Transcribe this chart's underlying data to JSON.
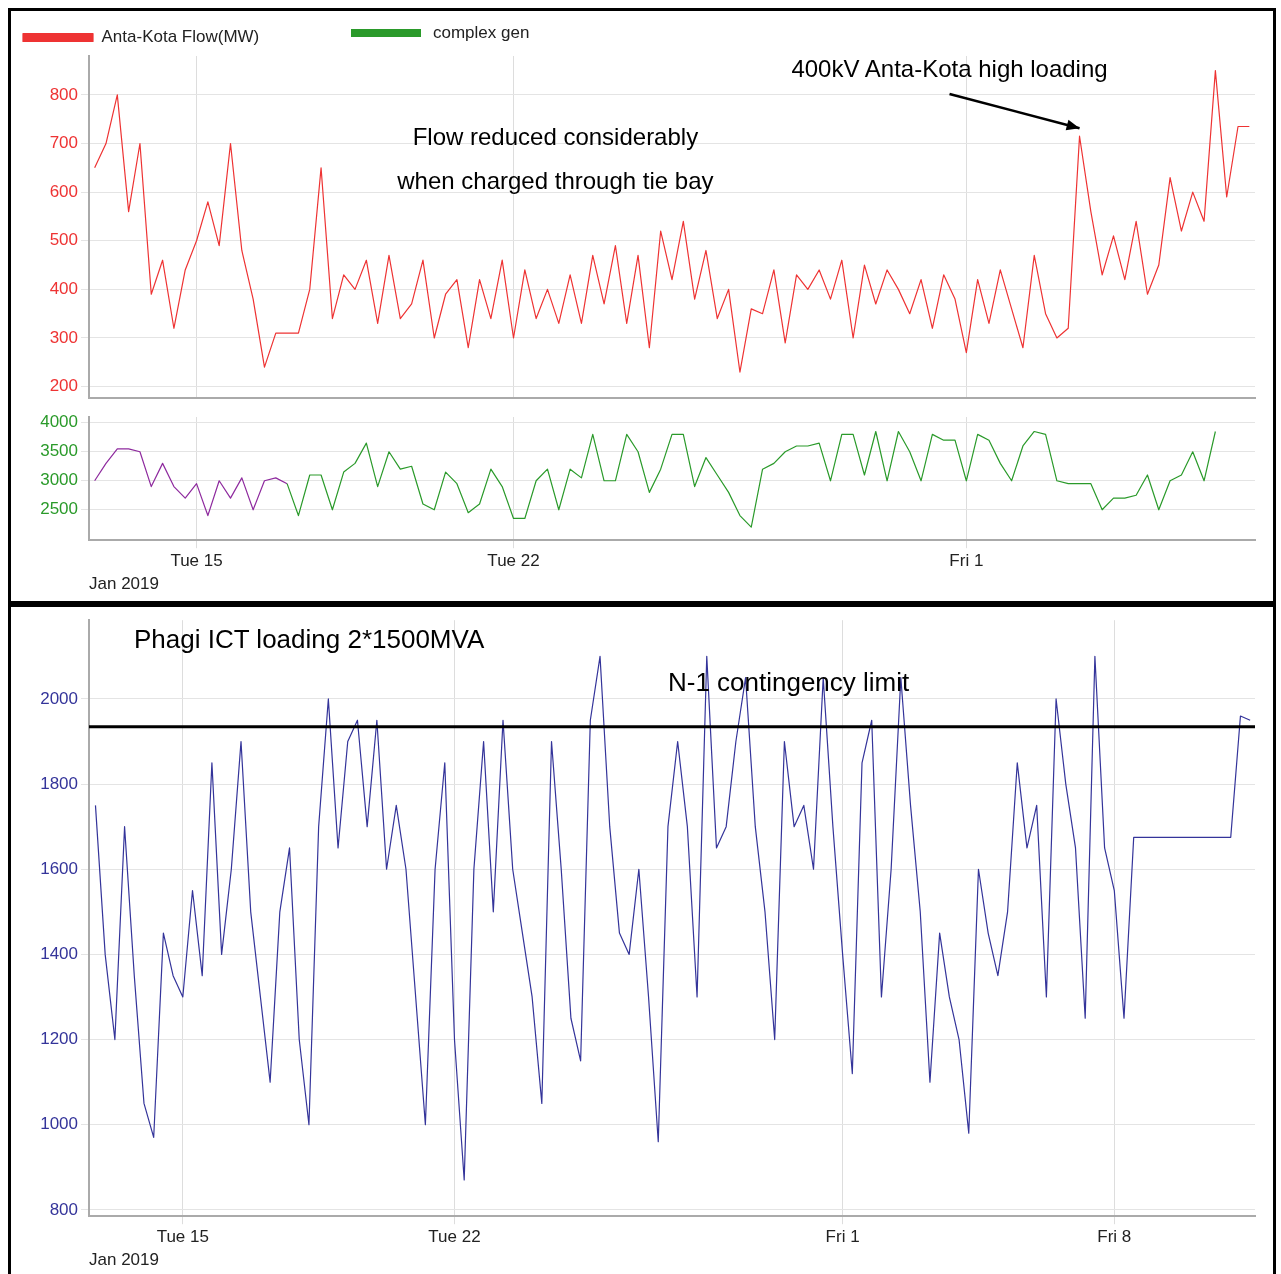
{
  "chart_data": [
    {
      "type": "line",
      "legend": "top left",
      "grid": true,
      "marker": "none",
      "line_style": "solid",
      "tick_labels": "y",
      "annotations": [
        "Flow reduced considerably when charged through tie bay",
        {
          "text": "400kV Anta-Kota high loading",
          "x": "2019-02-03T12:00",
          "y": 715
        }
      ],
      "xlim": [
        "2019-01-12T15:00",
        "2019-02-07T09:00"
      ],
      "xticks": [
        {
          "value": "2019-01-15",
          "label": null
        },
        {
          "value": "2019-01-22",
          "label": null
        },
        {
          "value": "2019-02-01",
          "label": null
        }
      ],
      "ylim": [
        177,
        880
      ],
      "yticks": [
        200,
        300,
        400,
        500,
        600,
        700,
        800
      ],
      "x": [
        "2019-01-12T18:00",
        "2019-01-13T00:00",
        "2019-01-13T06:00",
        "2019-01-13T12:00",
        "2019-01-13T18:00",
        "2019-01-14T00:00",
        "2019-01-14T06:00",
        "2019-01-14T12:00",
        "2019-01-14T18:00",
        "2019-01-15T00:00",
        "2019-01-15T06:00",
        "2019-01-15T12:00",
        "2019-01-15T18:00",
        "2019-01-16T00:00",
        "2019-01-16T06:00",
        "2019-01-16T12:00",
        "2019-01-16T18:00",
        "2019-01-17T00:00",
        "2019-01-17T06:00",
        "2019-01-17T12:00",
        "2019-01-17T18:00",
        "2019-01-18T00:00",
        "2019-01-18T06:00",
        "2019-01-18T12:00",
        "2019-01-18T18:00",
        "2019-01-19T00:00",
        "2019-01-19T06:00",
        "2019-01-19T12:00",
        "2019-01-19T18:00",
        "2019-01-20T00:00",
        "2019-01-20T06:00",
        "2019-01-20T12:00",
        "2019-01-20T18:00",
        "2019-01-21T00:00",
        "2019-01-21T06:00",
        "2019-01-21T12:00",
        "2019-01-21T18:00",
        "2019-01-22T00:00",
        "2019-01-22T06:00",
        "2019-01-22T12:00",
        "2019-01-22T18:00",
        "2019-01-23T00:00",
        "2019-01-23T06:00",
        "2019-01-23T12:00",
        "2019-01-23T18:00",
        "2019-01-24T00:00",
        "2019-01-24T06:00",
        "2019-01-24T12:00",
        "2019-01-24T18:00",
        "2019-01-25T00:00",
        "2019-01-25T06:00",
        "2019-01-25T12:00",
        "2019-01-25T18:00",
        "2019-01-26T00:00",
        "2019-01-26T06:00",
        "2019-01-26T12:00",
        "2019-01-26T18:00",
        "2019-01-27T00:00",
        "2019-01-27T06:00",
        "2019-01-27T12:00",
        "2019-01-27T18:00",
        "2019-01-28T00:00",
        "2019-01-28T06:00",
        "2019-01-28T12:00",
        "2019-01-28T18:00",
        "2019-01-29T00:00",
        "2019-01-29T06:00",
        "2019-01-29T12:00",
        "2019-01-29T18:00",
        "2019-01-30T00:00",
        "2019-01-30T06:00",
        "2019-01-30T12:00",
        "2019-01-30T18:00",
        "2019-01-31T00:00",
        "2019-01-31T06:00",
        "2019-01-31T12:00",
        "2019-01-31T18:00",
        "2019-02-01T00:00",
        "2019-02-01T06:00",
        "2019-02-01T12:00",
        "2019-02-01T18:00",
        "2019-02-02T00:00",
        "2019-02-02T06:00",
        "2019-02-02T12:00",
        "2019-02-02T18:00",
        "2019-02-03T00:00",
        "2019-02-03T06:00",
        "2019-02-03T12:00",
        "2019-02-03T18:00",
        "2019-02-04T00:00",
        "2019-02-04T06:00",
        "2019-02-04T12:00",
        "2019-02-04T18:00",
        "2019-02-05T00:00",
        "2019-02-05T06:00",
        "2019-02-05T12:00",
        "2019-02-05T18:00",
        "2019-02-06T00:00",
        "2019-02-06T06:00",
        "2019-02-06T12:00",
        "2019-02-06T18:00",
        "2019-02-07T00:00",
        "2019-02-07T06:00"
      ],
      "series": [
        {
          "name": "Anta-Kota Flow(MW)",
          "color": "#ee3333",
          "values": [
            650,
            700,
            800,
            560,
            700,
            390,
            460,
            320,
            440,
            500,
            580,
            490,
            700,
            480,
            380,
            240,
            310,
            310,
            310,
            400,
            650,
            340,
            430,
            400,
            460,
            330,
            470,
            340,
            370,
            460,
            300,
            390,
            420,
            280,
            420,
            340,
            460,
            300,
            440,
            340,
            400,
            330,
            430,
            330,
            470,
            370,
            490,
            330,
            470,
            280,
            520,
            420,
            540,
            380,
            480,
            340,
            400,
            230,
            360,
            350,
            440,
            290,
            430,
            400,
            440,
            380,
            460,
            300,
            450,
            370,
            440,
            400,
            350,
            420,
            320,
            430,
            380,
            270,
            420,
            330,
            440,
            360,
            280,
            470,
            350,
            300,
            320,
            715,
            560,
            430,
            510,
            420,
            540,
            390,
            450,
            630,
            520,
            600,
            540,
            850,
            590,
            735,
            735
          ]
        }
      ]
    },
    {
      "type": "line",
      "xlabel": "Jan 2019",
      "legend": "top left",
      "grid": true,
      "marker": "none",
      "line_style": "solid",
      "xlim": [
        "2019-01-12T15:00",
        "2019-02-07T09:00"
      ],
      "xticks": [
        {
          "value": "2019-01-15",
          "label": "Tue 15"
        },
        {
          "value": "2019-01-22",
          "label": "Tue 22"
        },
        {
          "value": "2019-02-01",
          "label": "Fri 1"
        }
      ],
      "ylim": [
        1975,
        4100
      ],
      "yticks": [
        2500,
        3000,
        3500,
        4000
      ],
      "x": [
        "2019-01-17T00:00",
        "2019-01-17T06:00",
        "2019-01-17T12:00",
        "2019-01-17T18:00",
        "2019-01-18T00:00",
        "2019-01-18T06:00",
        "2019-01-18T12:00",
        "2019-01-18T18:00",
        "2019-01-19T00:00",
        "2019-01-19T06:00",
        "2019-01-19T12:00",
        "2019-01-19T18:00",
        "2019-01-20T00:00",
        "2019-01-20T06:00",
        "2019-01-20T12:00",
        "2019-01-20T18:00",
        "2019-01-21T00:00",
        "2019-01-21T06:00",
        "2019-01-21T12:00",
        "2019-01-21T18:00",
        "2019-01-22T00:00",
        "2019-01-22T06:00",
        "2019-01-22T12:00",
        "2019-01-22T18:00",
        "2019-01-23T00:00",
        "2019-01-23T06:00",
        "2019-01-23T12:00",
        "2019-01-23T18:00",
        "2019-01-24T00:00",
        "2019-01-24T06:00",
        "2019-01-24T12:00",
        "2019-01-24T18:00",
        "2019-01-25T00:00",
        "2019-01-25T06:00",
        "2019-01-25T12:00",
        "2019-01-25T18:00",
        "2019-01-26T00:00",
        "2019-01-26T06:00",
        "2019-01-26T12:00",
        "2019-01-26T18:00",
        "2019-01-27T00:00",
        "2019-01-27T06:00",
        "2019-01-27T12:00",
        "2019-01-27T18:00",
        "2019-01-28T00:00",
        "2019-01-28T06:00",
        "2019-01-28T12:00",
        "2019-01-28T18:00",
        "2019-01-29T00:00",
        "2019-01-29T06:00",
        "2019-01-29T12:00",
        "2019-01-29T18:00",
        "2019-01-30T00:00",
        "2019-01-30T06:00",
        "2019-01-30T12:00",
        "2019-01-30T18:00",
        "2019-01-31T00:00",
        "2019-01-31T06:00",
        "2019-01-31T12:00",
        "2019-01-31T18:00",
        "2019-02-01T00:00",
        "2019-02-01T06:00",
        "2019-02-01T12:00",
        "2019-02-01T18:00",
        "2019-02-02T00:00",
        "2019-02-02T06:00",
        "2019-02-02T12:00",
        "2019-02-02T18:00",
        "2019-02-03T00:00",
        "2019-02-03T06:00",
        "2019-02-03T12:00",
        "2019-02-03T18:00",
        "2019-02-04T00:00",
        "2019-02-04T06:00",
        "2019-02-04T12:00",
        "2019-02-04T18:00",
        "2019-02-05T00:00",
        "2019-02-05T06:00",
        "2019-02-05T12:00",
        "2019-02-05T18:00",
        "2019-02-06T00:00",
        "2019-02-06T06:00",
        "2019-02-06T12:00"
      ],
      "series": [
        {
          "name": "complex gen",
          "color": "#2a9a2a",
          "values": [
            2950,
            2400,
            3100,
            3100,
            2500,
            3150,
            3300,
            3650,
            2900,
            3500,
            3200,
            3250,
            2600,
            2500,
            3150,
            2950,
            2450,
            2600,
            3200,
            2900,
            2350,
            2350,
            3000,
            3200,
            2500,
            3200,
            3050,
            3800,
            3000,
            3000,
            3800,
            3500,
            2800,
            3200,
            3800,
            3800,
            2900,
            3400,
            3100,
            2800,
            2400,
            2200,
            3200,
            3300,
            3500,
            3600,
            3600,
            3650,
            3000,
            3800,
            3800,
            3100,
            3850,
            3000,
            3850,
            3500,
            3000,
            3800,
            3700,
            3700,
            3000,
            3800,
            3700,
            3300,
            3000,
            3600,
            3850,
            3800,
            3000,
            2950,
            2950,
            2950,
            2500,
            2700,
            2700,
            2750,
            3100,
            2500,
            3000,
            3100,
            3500,
            3000,
            3850
          ]
        },
        {
          "color": "#8e2a9e",
          "x": [
            "2019-01-12T18:00",
            "2019-01-13T00:00",
            "2019-01-13T06:00",
            "2019-01-13T12:00",
            "2019-01-13T18:00",
            "2019-01-14T00:00",
            "2019-01-14T06:00",
            "2019-01-14T12:00",
            "2019-01-14T18:00",
            "2019-01-15T00:00",
            "2019-01-15T06:00",
            "2019-01-15T12:00",
            "2019-01-15T18:00",
            "2019-01-16T00:00",
            "2019-01-16T06:00",
            "2019-01-16T12:00",
            "2019-01-16T18:00",
            "2019-01-17T00:00"
          ],
          "values": [
            3000,
            3300,
            3550,
            3550,
            3500,
            2900,
            3300,
            2900,
            2700,
            2950,
            2400,
            3000,
            2700,
            3050,
            2500,
            3000,
            3050,
            2950
          ]
        }
      ]
    },
    {
      "type": "line",
      "title": "Phagi ICT loading 2*1500MVA",
      "xlabel": "Jan 2019",
      "grid": true,
      "marker": "none",
      "line_style": "solid",
      "xlim": [
        "2019-01-12T14:00",
        "2019-02-11T15:00"
      ],
      "xticks": [
        {
          "value": "2019-01-15",
          "label": "Tue 15"
        },
        {
          "value": "2019-01-22",
          "label": "Tue 22"
        },
        {
          "value": "2019-02-01",
          "label": "Fri 1"
        },
        {
          "value": "2019-02-08",
          "label": "Fri 8"
        }
      ],
      "ylim": [
        785,
        2185
      ],
      "yticks": [
        800,
        1000,
        1200,
        1400,
        1600,
        1800,
        2000
      ],
      "ref_lines": [
        {
          "axis": "y",
          "value": 1935,
          "label": "N-1 contingency limit",
          "color": "#000000"
        }
      ],
      "x": [
        "2019-01-12T18:00",
        "2019-01-13T00:00",
        "2019-01-13T06:00",
        "2019-01-13T12:00",
        "2019-01-13T18:00",
        "2019-01-14T00:00",
        "2019-01-14T06:00",
        "2019-01-14T12:00",
        "2019-01-14T18:00",
        "2019-01-15T00:00",
        "2019-01-15T06:00",
        "2019-01-15T12:00",
        "2019-01-15T18:00",
        "2019-01-16T00:00",
        "2019-01-16T06:00",
        "2019-01-16T12:00",
        "2019-01-16T18:00",
        "2019-01-17T00:00",
        "2019-01-17T06:00",
        "2019-01-17T12:00",
        "2019-01-17T18:00",
        "2019-01-18T00:00",
        "2019-01-18T06:00",
        "2019-01-18T12:00",
        "2019-01-18T18:00",
        "2019-01-19T00:00",
        "2019-01-19T06:00",
        "2019-01-19T12:00",
        "2019-01-19T18:00",
        "2019-01-20T00:00",
        "2019-01-20T06:00",
        "2019-01-20T12:00",
        "2019-01-20T18:00",
        "2019-01-21T00:00",
        "2019-01-21T06:00",
        "2019-01-21T12:00",
        "2019-01-21T18:00",
        "2019-01-22T00:00",
        "2019-01-22T06:00",
        "2019-01-22T12:00",
        "2019-01-22T18:00",
        "2019-01-23T00:00",
        "2019-01-23T06:00",
        "2019-01-23T12:00",
        "2019-01-23T18:00",
        "2019-01-24T00:00",
        "2019-01-24T06:00",
        "2019-01-24T12:00",
        "2019-01-24T18:00",
        "2019-01-25T00:00",
        "2019-01-25T06:00",
        "2019-01-25T12:00",
        "2019-01-25T18:00",
        "2019-01-26T00:00",
        "2019-01-26T06:00",
        "2019-01-26T12:00",
        "2019-01-26T18:00",
        "2019-01-27T00:00",
        "2019-01-27T06:00",
        "2019-01-27T12:00",
        "2019-01-27T18:00",
        "2019-01-28T00:00",
        "2019-01-28T06:00",
        "2019-01-28T12:00",
        "2019-01-28T18:00",
        "2019-01-29T00:00",
        "2019-01-29T06:00",
        "2019-01-29T12:00",
        "2019-01-29T18:00",
        "2019-01-30T00:00",
        "2019-01-30T06:00",
        "2019-01-30T12:00",
        "2019-01-30T18:00",
        "2019-01-31T00:00",
        "2019-01-31T06:00",
        "2019-01-31T12:00",
        "2019-01-31T18:00",
        "2019-02-01T00:00",
        "2019-02-01T06:00",
        "2019-02-01T12:00",
        "2019-02-01T18:00",
        "2019-02-02T00:00",
        "2019-02-02T06:00",
        "2019-02-02T12:00",
        "2019-02-02T18:00",
        "2019-02-03T00:00",
        "2019-02-03T06:00",
        "2019-02-03T12:00",
        "2019-02-03T18:00",
        "2019-02-04T00:00",
        "2019-02-04T06:00",
        "2019-02-04T12:00",
        "2019-02-04T18:00",
        "2019-02-05T00:00",
        "2019-02-05T06:00",
        "2019-02-05T12:00",
        "2019-02-05T18:00",
        "2019-02-06T00:00",
        "2019-02-06T06:00",
        "2019-02-06T12:00",
        "2019-02-06T18:00",
        "2019-02-07T00:00",
        "2019-02-07T06:00",
        "2019-02-07T12:00",
        "2019-02-07T18:00",
        "2019-02-08T00:00",
        "2019-02-08T06:00",
        "2019-02-08T12:00",
        "2019-02-08T18:00",
        "2019-02-09T00:00",
        "2019-02-09T06:00",
        "2019-02-09T12:00",
        "2019-02-09T18:00",
        "2019-02-10T00:00",
        "2019-02-10T06:00",
        "2019-02-10T12:00",
        "2019-02-10T18:00",
        "2019-02-11T00:00",
        "2019-02-11T06:00",
        "2019-02-11T12:00"
      ],
      "series": [
        {
          "color": "#34349a",
          "values": [
            1750,
            1400,
            1200,
            1700,
            1350,
            1050,
            970,
            1450,
            1350,
            1300,
            1550,
            1350,
            1850,
            1400,
            1600,
            1900,
            1500,
            1300,
            1100,
            1500,
            1650,
            1200,
            1000,
            1700,
            2000,
            1650,
            1900,
            1950,
            1700,
            1950,
            1600,
            1750,
            1600,
            1300,
            1000,
            1600,
            1850,
            1200,
            870,
            1600,
            1900,
            1500,
            1950,
            1600,
            1450,
            1300,
            1050,
            1900,
            1600,
            1250,
            1150,
            1950,
            2100,
            1700,
            1450,
            1400,
            1600,
            1300,
            960,
            1700,
            1900,
            1700,
            1300,
            2100,
            1650,
            1700,
            1900,
            2050,
            1700,
            1500,
            1200,
            1900,
            1700,
            1750,
            1600,
            2050,
            1700,
            1400,
            1120,
            1850,
            1950,
            1300,
            1600,
            2050,
            1750,
            1500,
            1100,
            1450,
            1300,
            1200,
            980,
            1600,
            1450,
            1350,
            1500,
            1850,
            1650,
            1750,
            1300,
            2000,
            1800,
            1650,
            1250,
            2100,
            1650,
            1550,
            1250,
            1675,
            1675,
            1675,
            1675,
            1675,
            1675,
            1675,
            1675,
            1675,
            1675,
            1675,
            1960,
            1950
          ]
        }
      ]
    }
  ]
}
